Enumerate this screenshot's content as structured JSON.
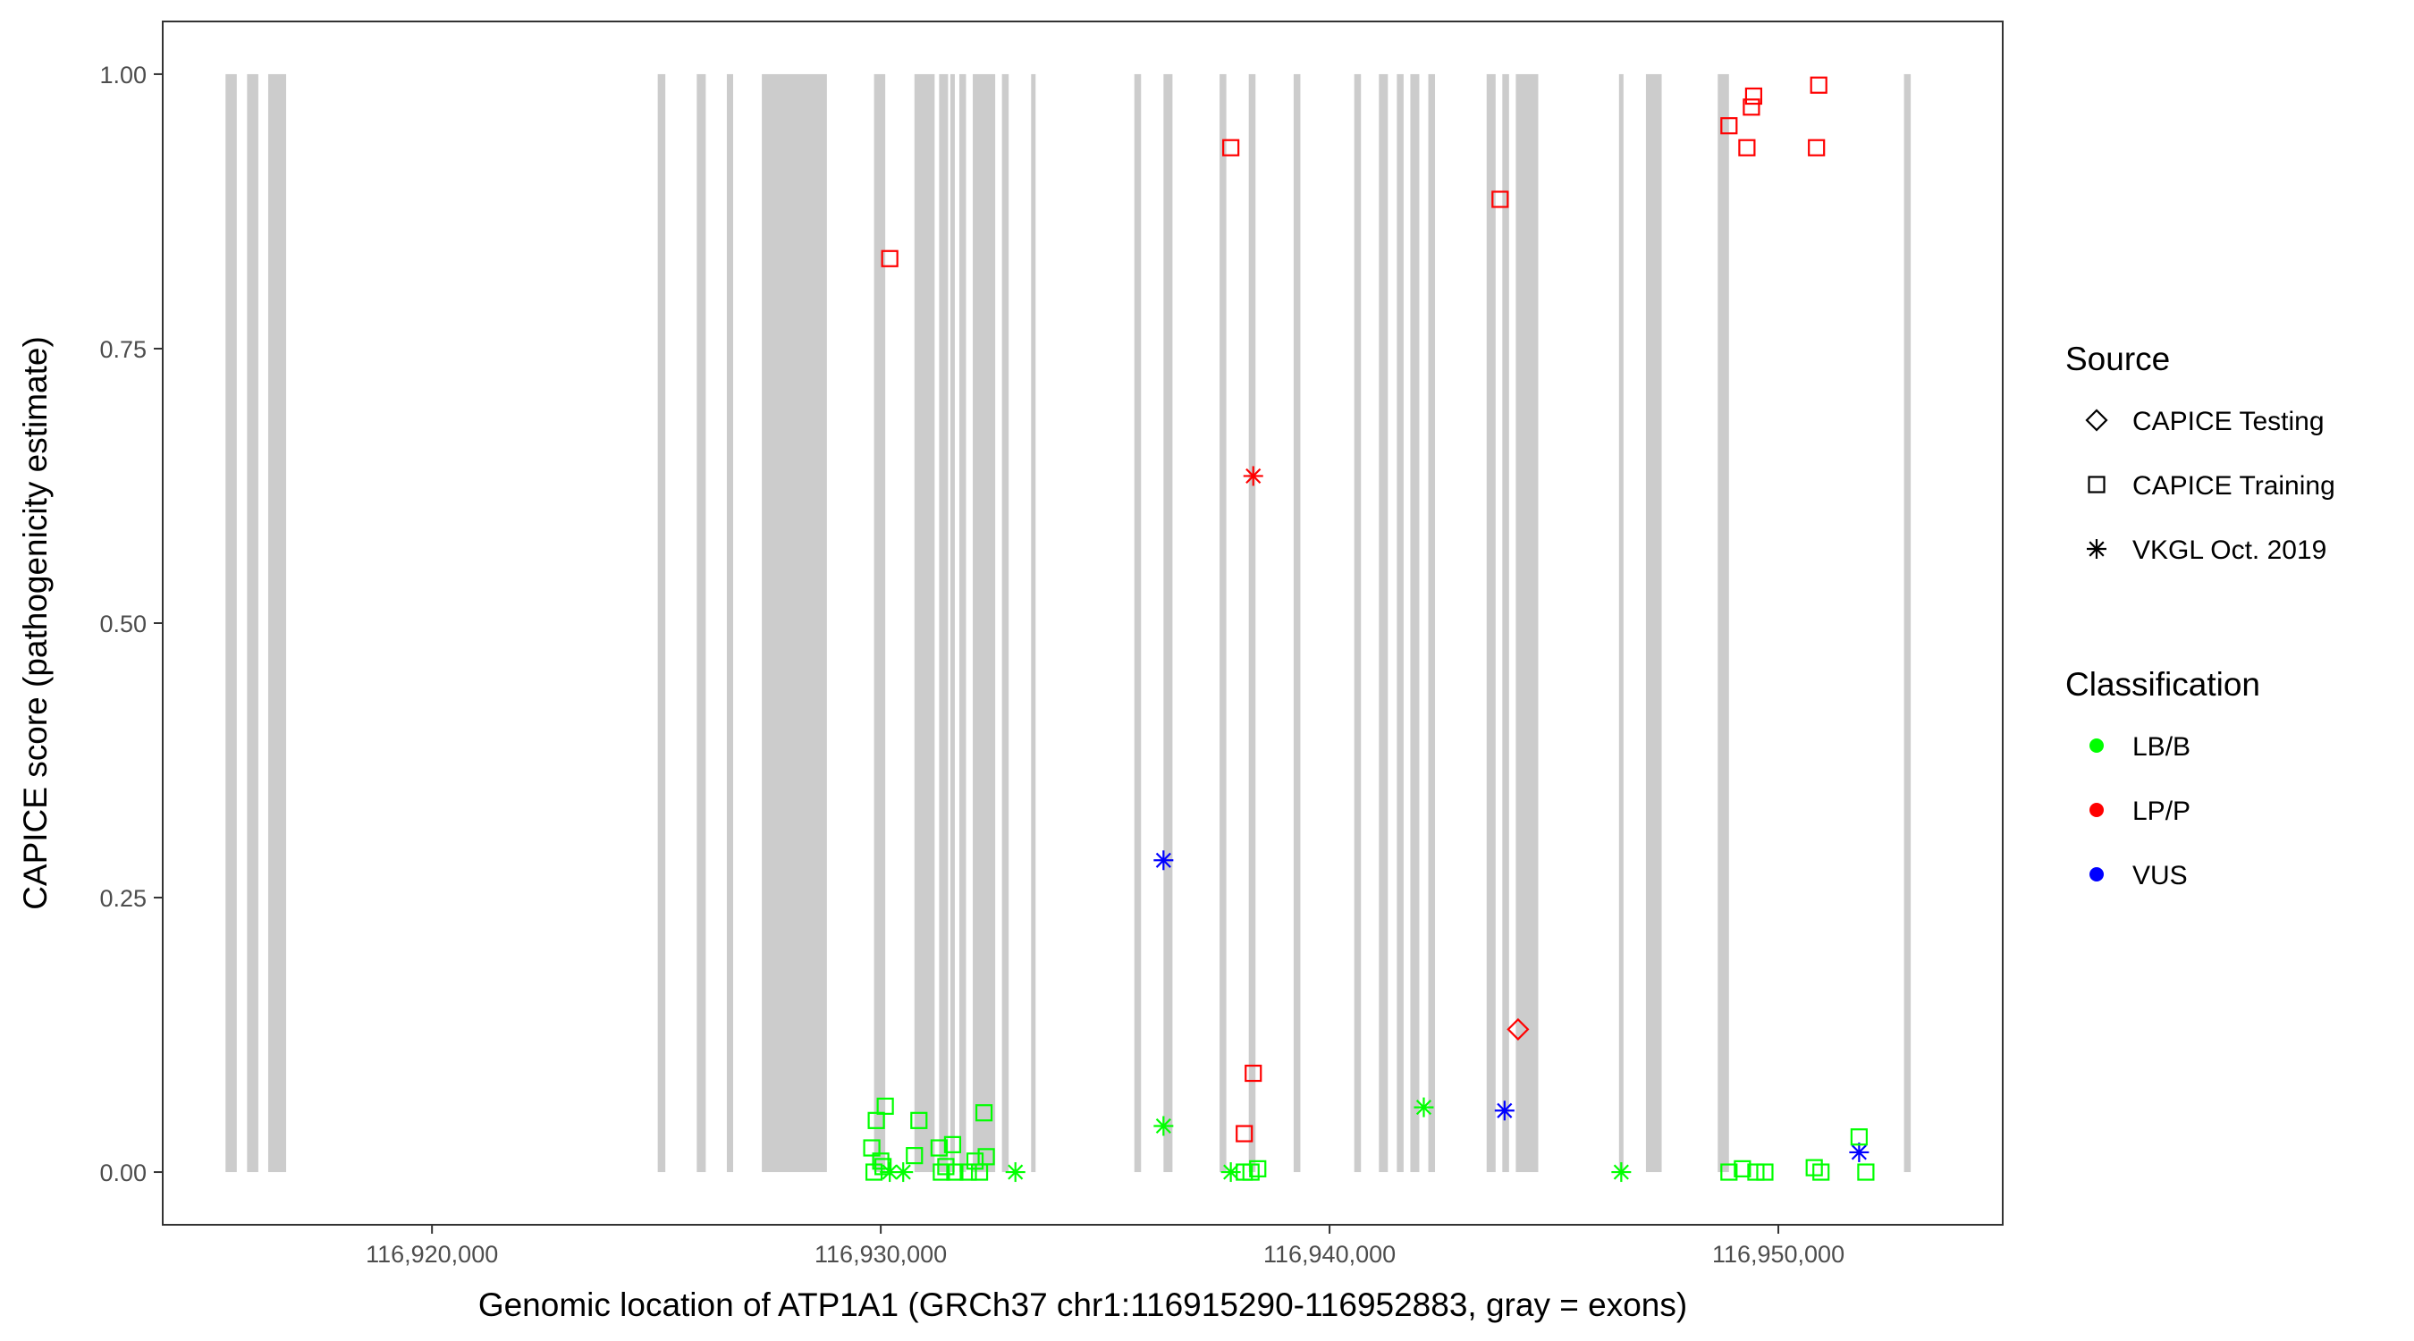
{
  "chart_data": {
    "type": "scatter",
    "xlabel": "Genomic location of ATP1A1 (GRCh37 chr1:116915290-116952883, gray = exons)",
    "ylabel": "CAPICE score (pathogenicity estimate)",
    "xlim": [
      116914000,
      116955000
    ],
    "ylim": [
      -0.048,
      1.048
    ],
    "x_ticks": [
      116920000,
      116930000,
      116940000,
      116950000
    ],
    "x_tick_labels": [
      "116,920,000",
      "116,930,000",
      "116,940,000",
      "116,950,000"
    ],
    "y_ticks": [
      0,
      0.25,
      0.5,
      0.75,
      1
    ],
    "y_tick_labels": [
      "0.00",
      "0.25",
      "0.50",
      "0.75",
      "1.00"
    ],
    "grid": false,
    "exons": [
      [
        116915400,
        116915650
      ],
      [
        116915880,
        116916130
      ],
      [
        116916350,
        116916750
      ],
      [
        116925030,
        116925200
      ],
      [
        116925900,
        116926100
      ],
      [
        116926570,
        116926710
      ],
      [
        116927350,
        116928800
      ],
      [
        116929850,
        116930100
      ],
      [
        116930750,
        116931200
      ],
      [
        116931300,
        116931500
      ],
      [
        116931550,
        116931650
      ],
      [
        116931750,
        116931900
      ],
      [
        116932050,
        116932550
      ],
      [
        116932700,
        116932850
      ],
      [
        116933350,
        116933450
      ],
      [
        116935650,
        116935800
      ],
      [
        116936300,
        116936500
      ],
      [
        116937550,
        116937700
      ],
      [
        116938200,
        116938350
      ],
      [
        116939200,
        116939350
      ],
      [
        116940550,
        116940700
      ],
      [
        116941100,
        116941300
      ],
      [
        116941500,
        116941650
      ],
      [
        116941800,
        116942000
      ],
      [
        116942200,
        116942350
      ],
      [
        116943500,
        116943700
      ],
      [
        116943850,
        116944000
      ],
      [
        116944150,
        116944650
      ],
      [
        116946450,
        116946550
      ],
      [
        116947050,
        116947400
      ],
      [
        116948650,
        116948900
      ],
      [
        116952800,
        116952950
      ]
    ],
    "legend": {
      "source_title": "Source",
      "source_items": [
        {
          "label": "CAPICE Testing",
          "shape": "diamond"
        },
        {
          "label": "CAPICE Training",
          "shape": "square"
        },
        {
          "label": "VKGL Oct. 2019",
          "shape": "asterisk"
        }
      ],
      "class_title": "Classification",
      "class_items": [
        {
          "label": "LB/B",
          "color": "#00ff00"
        },
        {
          "label": "LP/P",
          "color": "#ff0000"
        },
        {
          "label": "VUS",
          "color": "#0000ff"
        }
      ]
    },
    "colors": {
      "LB/B": "#00ff00",
      "LP/P": "#ff0000",
      "VUS": "#0000ff",
      "exon": "#cccccc"
    },
    "series": [
      {
        "name": "CAPICE Training",
        "shape": "square",
        "class": "LP/P",
        "points": [
          [
            116930200,
            0.832
          ],
          [
            116937800,
            0.933
          ],
          [
            116943800,
            0.886
          ],
          [
            116948900,
            0.953
          ],
          [
            116949300,
            0.933
          ],
          [
            116949400,
            0.97
          ],
          [
            116949450,
            0.98
          ],
          [
            116950900,
            0.99
          ],
          [
            116950850,
            0.933
          ],
          [
            116938300,
            0.09
          ],
          [
            116938100,
            0.035
          ]
        ]
      },
      {
        "name": "CAPICE Testing",
        "shape": "diamond",
        "class": "LP/P",
        "points": [
          [
            116944200,
            0.13
          ]
        ]
      },
      {
        "name": "VKGL Oct. 2019",
        "shape": "asterisk",
        "class": "LP/P",
        "points": [
          [
            116938300,
            0.634
          ]
        ]
      },
      {
        "name": "VKGL Oct. 2019",
        "shape": "asterisk",
        "class": "VUS",
        "points": [
          [
            116936300,
            0.284
          ],
          [
            116943900,
            0.056
          ],
          [
            116951800,
            0.018
          ]
        ]
      },
      {
        "name": "VKGL Oct. 2019",
        "shape": "asterisk",
        "class": "LB/B",
        "points": [
          [
            116936300,
            0.042
          ],
          [
            116942100,
            0.059
          ],
          [
            116946500,
            0.0
          ],
          [
            116933000,
            0.0
          ],
          [
            116930200,
            0.0
          ],
          [
            116930500,
            0.0
          ],
          [
            116937800,
            0.0
          ]
        ]
      },
      {
        "name": "CAPICE Training",
        "shape": "square",
        "class": "LB/B",
        "points": [
          [
            116930100,
            0.06
          ],
          [
            116929900,
            0.047
          ],
          [
            116929800,
            0.022
          ],
          [
            116930000,
            0.01
          ],
          [
            116929850,
            0.0
          ],
          [
            116930050,
            0.005
          ],
          [
            116930850,
            0.047
          ],
          [
            116930750,
            0.015
          ],
          [
            116931300,
            0.022
          ],
          [
            116931600,
            0.025
          ],
          [
            116931450,
            0.005
          ],
          [
            116931350,
            0.0
          ],
          [
            116931650,
            0.0
          ],
          [
            116932100,
            0.01
          ],
          [
            116932300,
            0.054
          ],
          [
            116932350,
            0.014
          ],
          [
            116932200,
            0.0
          ],
          [
            116931950,
            0.0
          ],
          [
            116938100,
            0.0
          ],
          [
            116938400,
            0.003
          ],
          [
            116948900,
            0.0
          ],
          [
            116949200,
            0.003
          ],
          [
            116949500,
            0.0
          ],
          [
            116949700,
            0.0
          ],
          [
            116950800,
            0.004
          ],
          [
            116950950,
            0.0
          ],
          [
            116951800,
            0.032
          ],
          [
            116951950,
            0.0
          ],
          [
            116938250,
            0.0
          ]
        ]
      }
    ]
  }
}
